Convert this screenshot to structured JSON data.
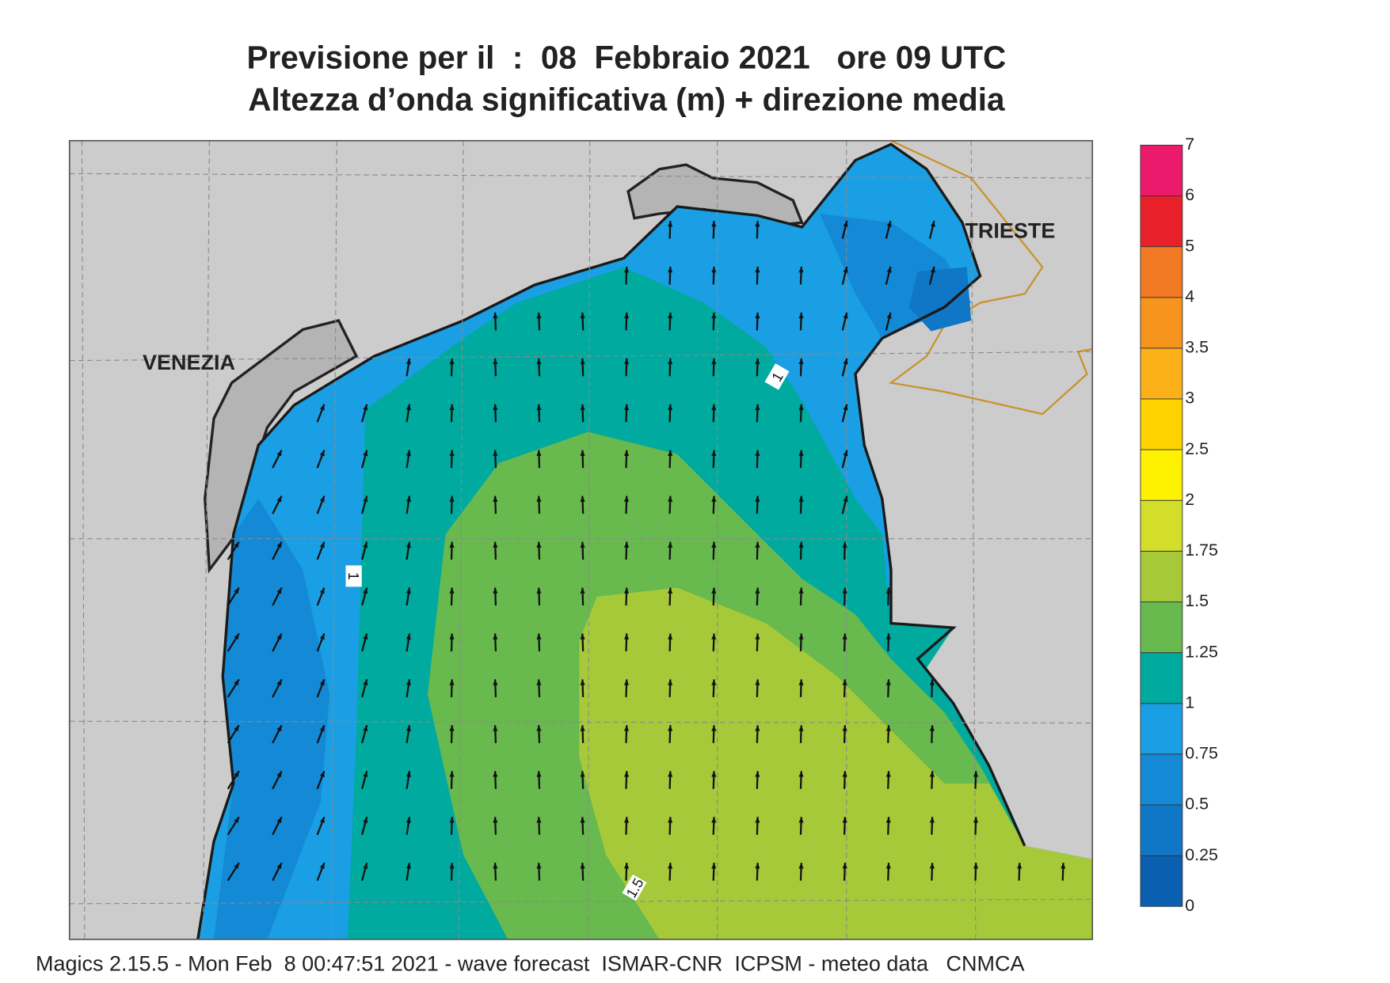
{
  "header": {
    "title_lines": [
      "Previsione per il  :  08  Febbraio 2021   ore 09 UTC",
      "Altezza d’onda significativa (m) + direzione media"
    ]
  },
  "map": {
    "place_labels": [
      "VENEZIA",
      "TRIESTE"
    ],
    "contour_labels": [
      1,
      1,
      1.5
    ]
  },
  "colorbar": {
    "ticks": [
      0,
      0.25,
      0.5,
      0.75,
      1,
      1.25,
      1.5,
      1.75,
      2,
      2.5,
      3,
      3.5,
      4,
      5,
      6,
      7
    ],
    "colors": [
      "#0b5fb0",
      "#0f77c6",
      "#1489d6",
      "#1a9fe4",
      "#00aa9f",
      "#68b94e",
      "#a6c93a",
      "#d3de2a",
      "#fff200",
      "#ffd300",
      "#fbb117",
      "#f7941d",
      "#f37a25",
      "#e8202a",
      "#ec1a6c"
    ]
  },
  "footer": "Magics 2.15.5 - Mon Feb  8 00:47:51 2021 - wave forecast  ISMAR-CNR  ICPSM - meteo data   CNMCA"
}
